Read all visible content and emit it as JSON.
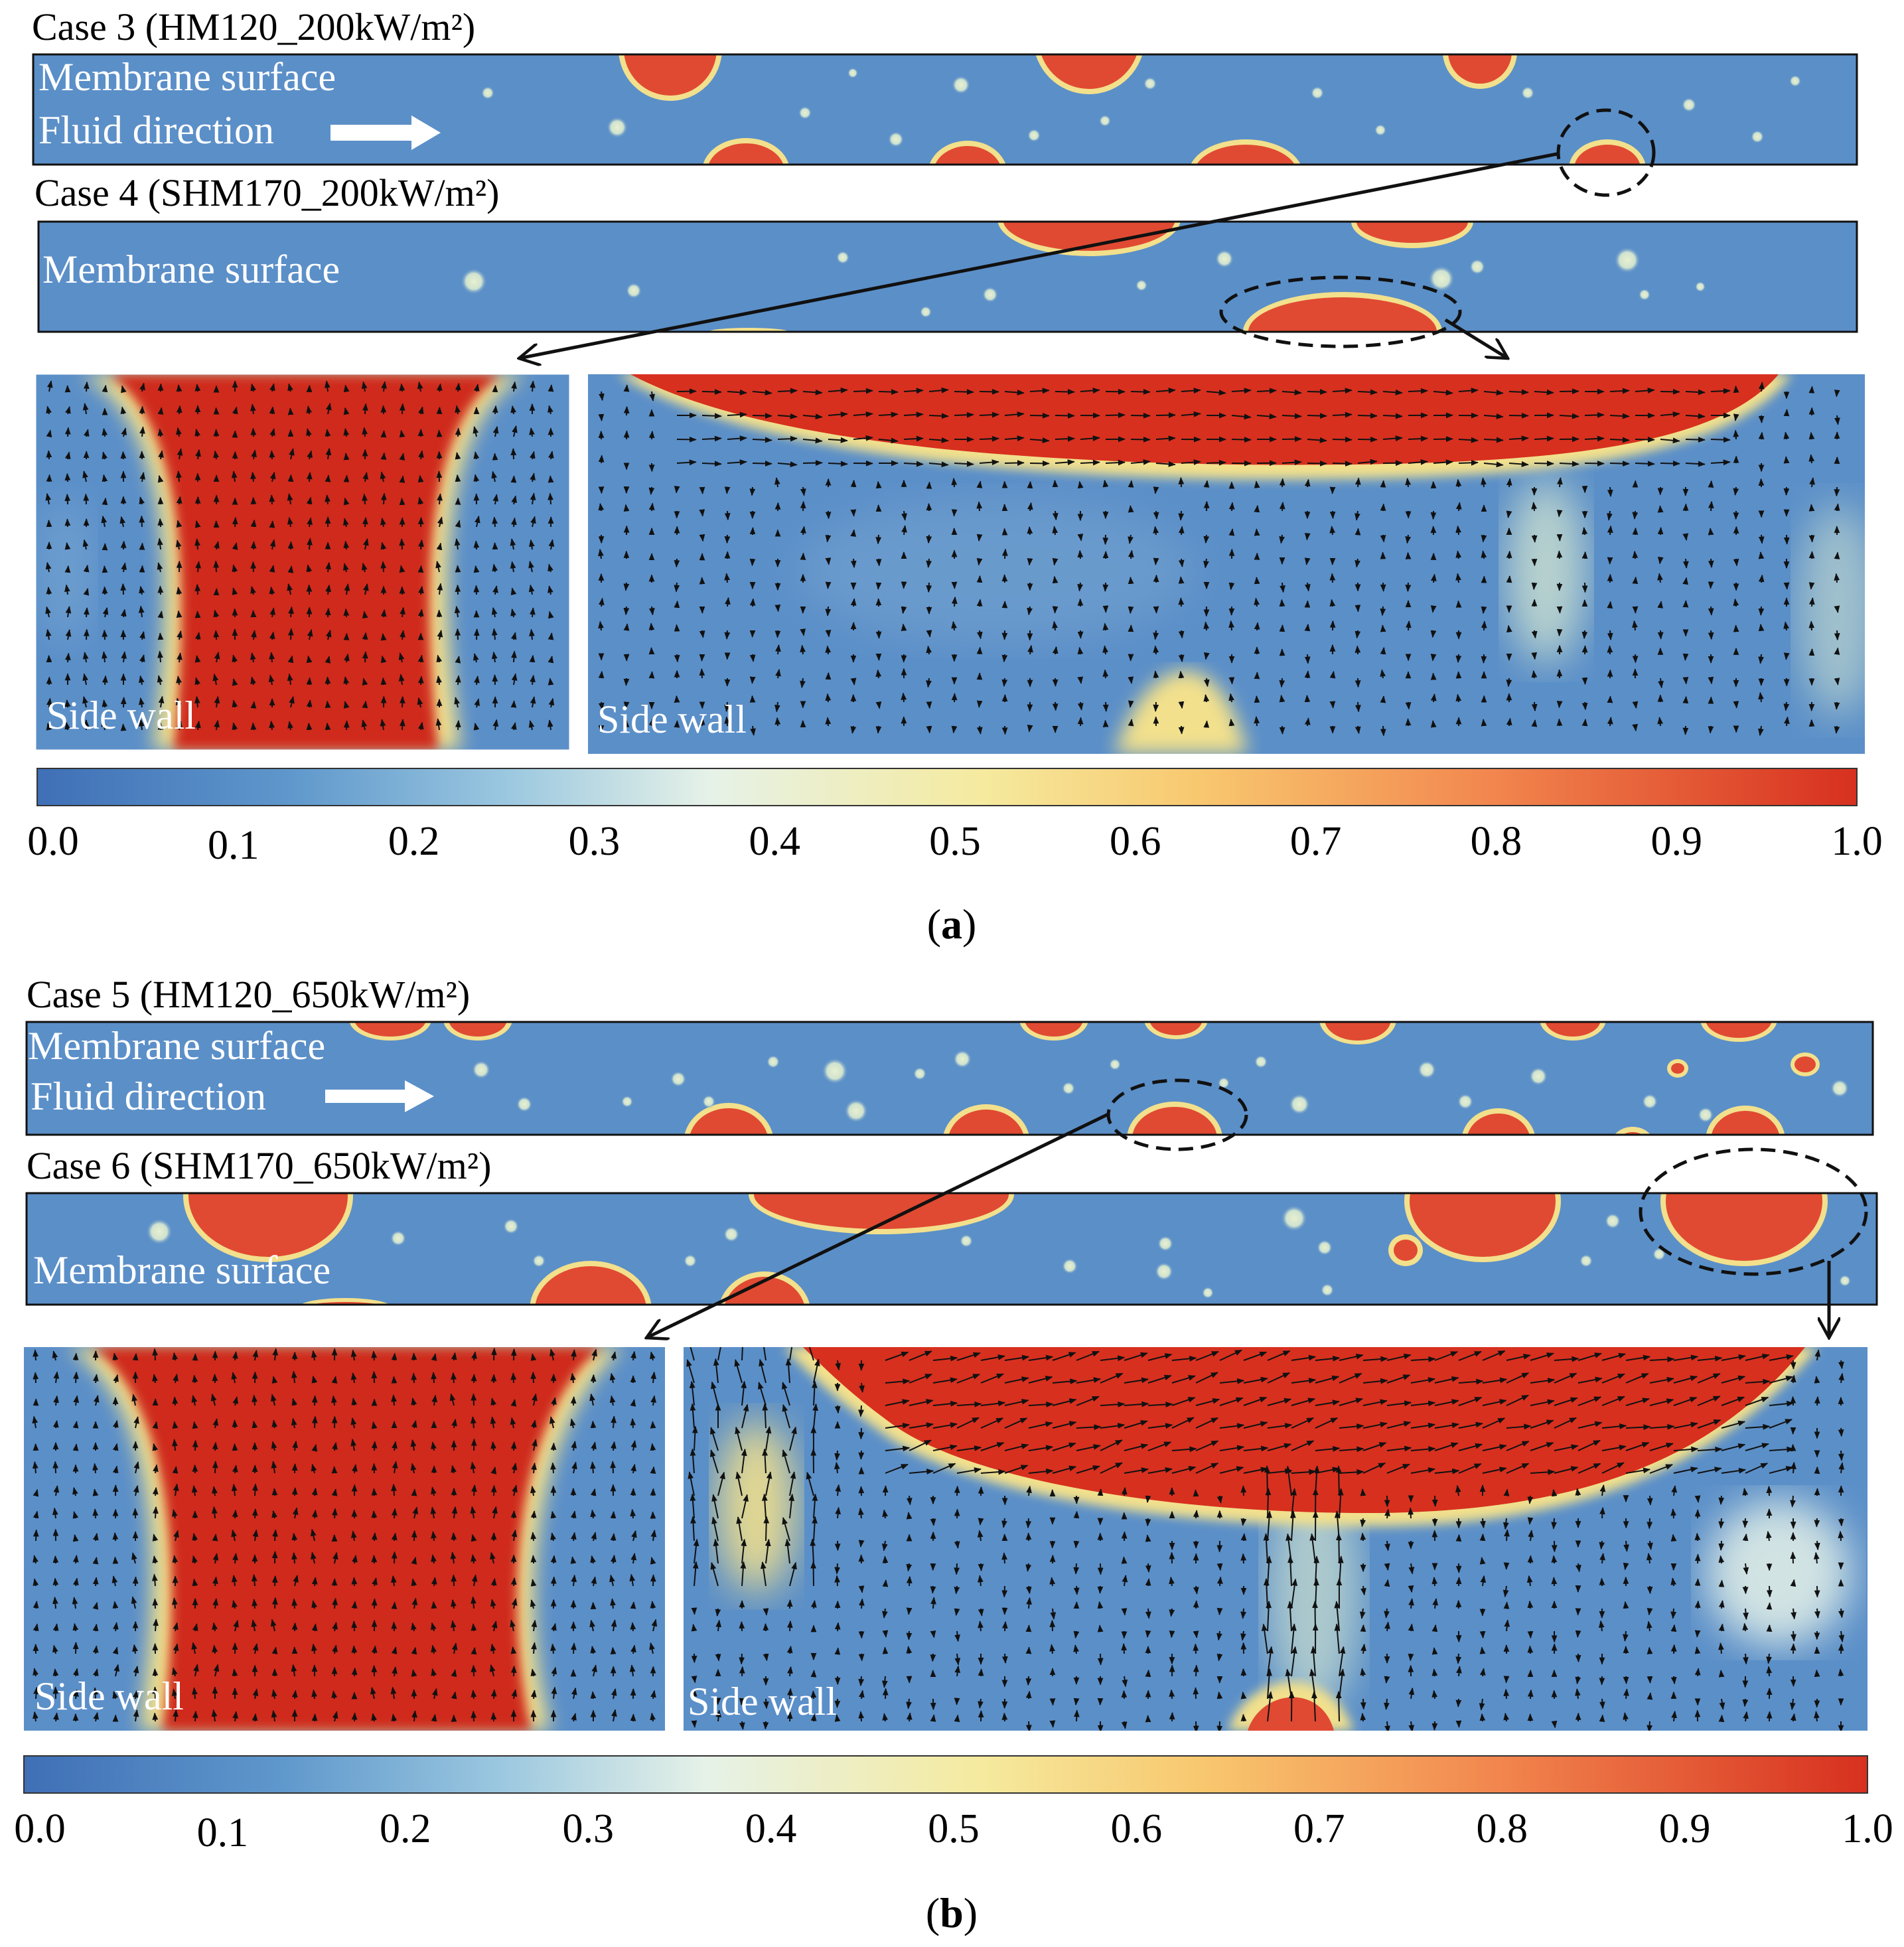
{
  "colormap": {
    "stops": [
      "#3f6fb6",
      "#5f98cc",
      "#9cc8e0",
      "#e6f2e8",
      "#f5ea9e",
      "#f8c76e",
      "#f2864e",
      "#d7301f"
    ],
    "ticks": [
      "0.0",
      "0.1",
      "0.2",
      "0.3",
      "0.4",
      "0.5",
      "0.6",
      "0.7",
      "0.8",
      "0.9",
      "1.0"
    ]
  },
  "colors": {
    "blue": "#5b8fc8",
    "red": "#e04a32",
    "deep_red": "#cf2b1c",
    "yellow": "#f2e9a0",
    "dashed": "#111111"
  },
  "panel_a": {
    "caption_letter": "a",
    "case3": {
      "title": "Case 3 (HM120_200kW/m²)",
      "membrane_label": "Membrane surface",
      "fluid_label": "Fluid direction"
    },
    "case4": {
      "title": "Case 4 (SHM170_200kW/m²)",
      "membrane_label": "Membrane surface"
    },
    "detail_left": {
      "label": "Side wall"
    },
    "detail_right": {
      "label": "Side wall"
    }
  },
  "panel_b": {
    "caption_letter": "b",
    "case5": {
      "title": "Case 5 (HM120_650kW/m²)",
      "membrane_label": "Membrane surface",
      "fluid_label": "Fluid direction"
    },
    "case6": {
      "title": "Case 6 (SHM170_650kW/m²)",
      "membrane_label": "Membrane surface"
    },
    "detail_left": {
      "label": "Side wall"
    },
    "detail_right": {
      "label": "Side wall"
    }
  }
}
